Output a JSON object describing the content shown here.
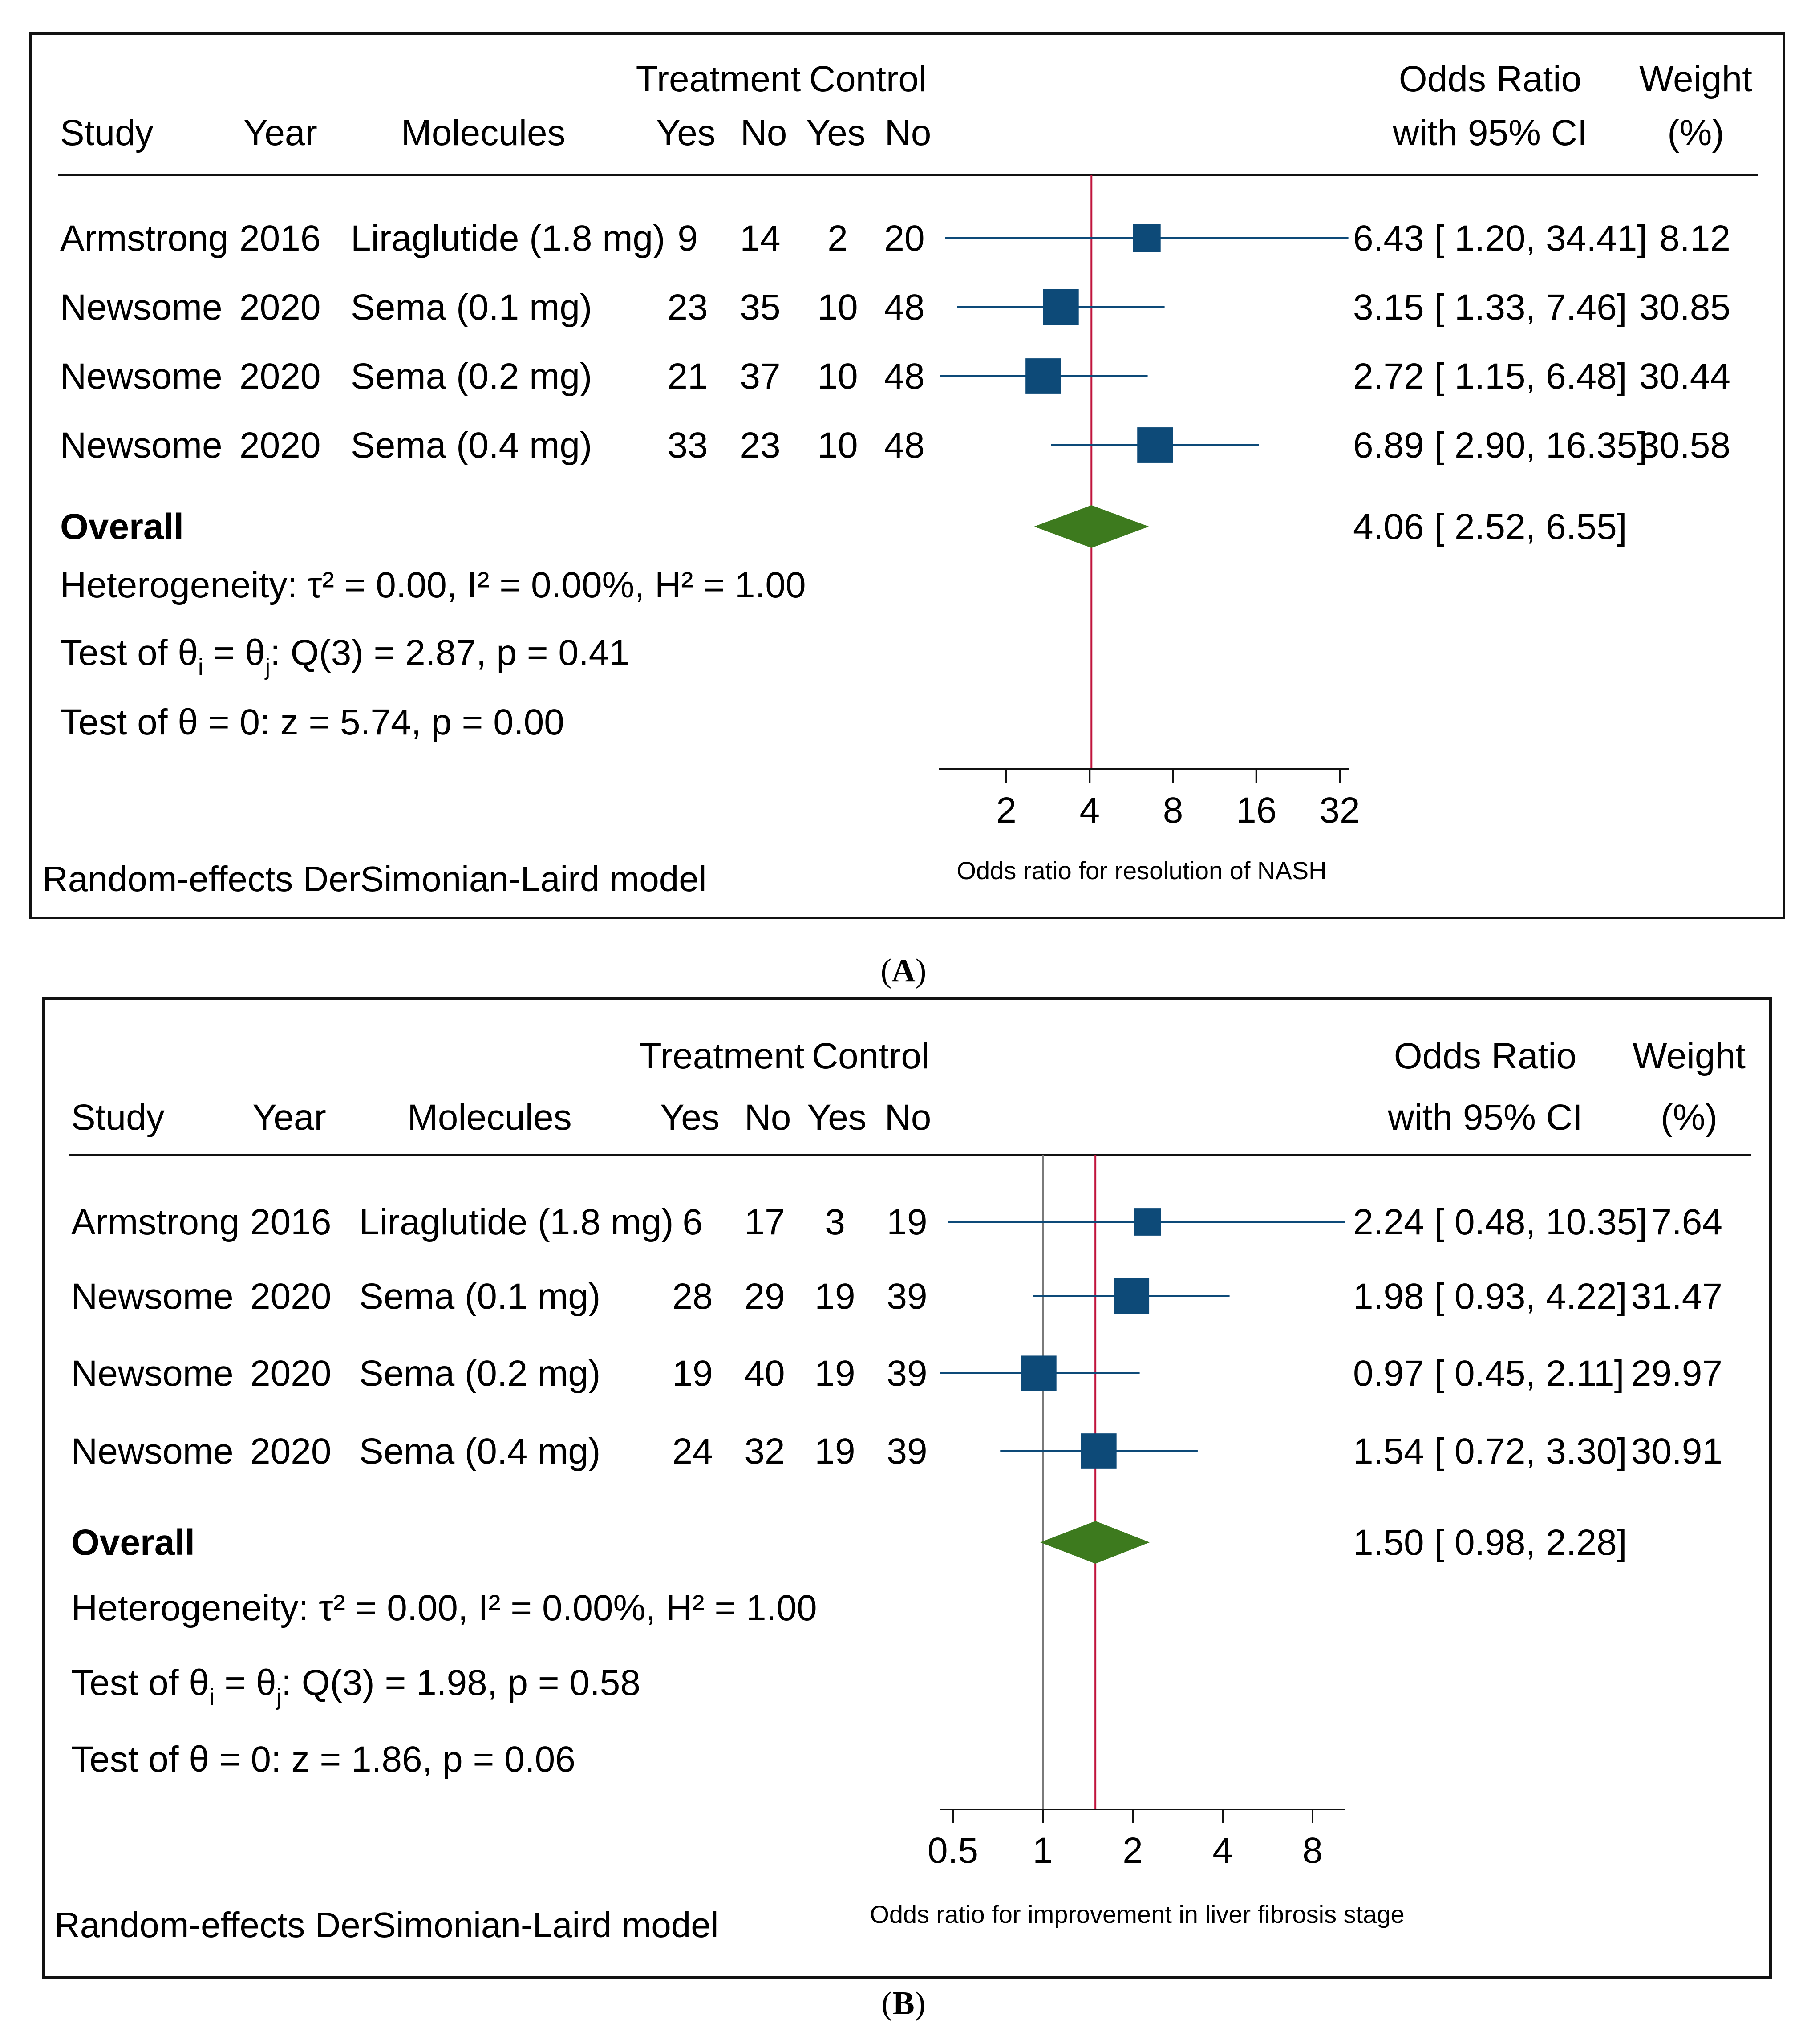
{
  "panels": [
    {
      "panel_label": "(A)",
      "header": {
        "study": "Study",
        "year": "Year",
        "molecules": "Molecules",
        "treatment": "Treatment",
        "control": "Control",
        "t_yes": "Yes",
        "t_no": "No",
        "c_yes": "Yes",
        "c_no": "No",
        "or_line1": "Odds Ratio",
        "or_line2": "with 95% CI",
        "w_line1": "Weight",
        "w_line2": "(%)"
      },
      "rows": [
        {
          "study": "Armstrong",
          "year": "2016",
          "molecule": "Liraglutide (1.8 mg)",
          "t_yes": "9",
          "t_no": "14",
          "c_yes": "2",
          "c_no": "20",
          "or_text": "6.43 [ 1.20,  34.41]",
          "weight": "8.12"
        },
        {
          "study": "Newsome",
          "year": "2020",
          "molecule": "Sema (0.1 mg)",
          "t_yes": "23",
          "t_no": "35",
          "c_yes": "10",
          "c_no": "48",
          "or_text": "3.15 [ 1.33,    7.46]",
          "weight": "30.85"
        },
        {
          "study": "Newsome",
          "year": "2020",
          "molecule": "Sema (0.2 mg)",
          "t_yes": "21",
          "t_no": "37",
          "c_yes": "10",
          "c_no": "48",
          "or_text": "2.72 [ 1.15,    6.48]",
          "weight": "30.44"
        },
        {
          "study": "Newsome",
          "year": "2020",
          "molecule": "Sema (0.4 mg)",
          "t_yes": "33",
          "t_no": "23",
          "c_yes": "10",
          "c_no": "48",
          "or_text": "6.89 [ 2.90,  16.35]",
          "weight": "30.58"
        }
      ],
      "overall": {
        "label": "Overall",
        "or_text": "4.06 [ 2.52,    6.55]"
      },
      "heterogeneity": "Heterogeneity: τ² = 0.00, I² = 0.00%, H² = 1.00",
      "test_q": {
        "prefix": "Test of θ",
        "sub_i": "i",
        "mid": " = θ",
        "sub_j": "j",
        "suffix": ": Q(3) = 2.87, p = 0.41"
      },
      "test_z": "Test of θ = 0: z = 5.74, p = 0.00",
      "model": "Random-effects DerSimonian-Laird model",
      "axis_label": "Odds ratio for resolution of NASH",
      "ticks": [
        "2",
        "4",
        "8",
        "16",
        "32"
      ]
    },
    {
      "panel_label": "(B)",
      "header": {
        "study": "Study",
        "year": "Year",
        "molecules": "Molecules",
        "treatment": "Treatment",
        "control": "Control",
        "t_yes": "Yes",
        "t_no": "No",
        "c_yes": "Yes",
        "c_no": "No",
        "or_line1": "Odds Ratio",
        "or_line2": "with 95% CI",
        "w_line1": "Weight",
        "w_line2": "(%)"
      },
      "rows": [
        {
          "study": "Armstrong",
          "year": "2016",
          "molecule": "Liraglutide (1.8 mg)",
          "t_yes": "6",
          "t_no": "17",
          "c_yes": "3",
          "c_no": "19",
          "or_text": "2.24 [ 0.48,  10.35]",
          "weight": "7.64"
        },
        {
          "study": "Newsome",
          "year": "2020",
          "molecule": "Sema (0.1 mg)",
          "t_yes": "28",
          "t_no": "29",
          "c_yes": "19",
          "c_no": "39",
          "or_text": "1.98 [ 0.93,    4.22]",
          "weight": "31.47"
        },
        {
          "study": "Newsome",
          "year": "2020",
          "molecule": "Sema (0.2 mg)",
          "t_yes": "19",
          "t_no": "40",
          "c_yes": "19",
          "c_no": "39",
          "or_text": "0.97 [ 0.45,    2.11]",
          "weight": "29.97"
        },
        {
          "study": "Newsome",
          "year": "2020",
          "molecule": "Sema (0.4 mg)",
          "t_yes": "24",
          "t_no": "32",
          "c_yes": "19",
          "c_no": "39",
          "or_text": "1.54 [ 0.72,    3.30]",
          "weight": "30.91"
        }
      ],
      "overall": {
        "label": "Overall",
        "or_text": "1.50 [ 0.98,    2.28]"
      },
      "heterogeneity": "Heterogeneity: τ² = 0.00, I² = 0.00%, H² = 1.00",
      "test_q": {
        "prefix": "Test of θ",
        "sub_i": "i",
        "mid": " = θ",
        "sub_j": "j",
        "suffix": ": Q(3) = 1.98, p = 0.58"
      },
      "test_z": "Test of θ = 0: z = 1.86, p = 0.06",
      "model": "Random-effects DerSimonian-Laird model",
      "axis_label": "Odds ratio for improvement in liver fibrosis stage",
      "ticks": [
        "0.5",
        "1",
        "2",
        "4",
        "8"
      ]
    }
  ],
  "colors": {
    "marker": "#0d4a78",
    "ci_line": "#0d4a78",
    "diamond": "#3d7a1e",
    "overall_line": "#c0143c",
    "null_line": "#7a7a7a",
    "frame": "#111111"
  },
  "chart_data": [
    {
      "type": "forest",
      "scale": "log",
      "xlabel": "Odds ratio for resolution of NASH",
      "x_ticks": [
        2,
        4,
        8,
        16,
        32
      ],
      "overall_line": 4.06,
      "series": [
        {
          "label": "Armstrong 2016 Liraglutide (1.8 mg)",
          "or": 6.43,
          "lo": 1.2,
          "hi": 34.41,
          "weight": 8.12
        },
        {
          "label": "Newsome 2020 Sema (0.1 mg)",
          "or": 3.15,
          "lo": 1.33,
          "hi": 7.46,
          "weight": 30.85
        },
        {
          "label": "Newsome 2020 Sema (0.2 mg)",
          "or": 2.72,
          "lo": 1.15,
          "hi": 6.48,
          "weight": 30.44
        },
        {
          "label": "Newsome 2020 Sema (0.4 mg)",
          "or": 6.89,
          "lo": 2.9,
          "hi": 16.35,
          "weight": 30.58
        }
      ],
      "overall": {
        "or": 4.06,
        "lo": 2.52,
        "hi": 6.55
      }
    },
    {
      "type": "forest",
      "scale": "log",
      "xlabel": "Odds ratio for improvement in liver fibrosis stage",
      "x_ticks": [
        0.5,
        1,
        2,
        4,
        8
      ],
      "null_line": 1,
      "overall_line": 1.5,
      "series": [
        {
          "label": "Armstrong 2016 Liraglutide (1.8 mg)",
          "or": 2.24,
          "lo": 0.48,
          "hi": 10.35,
          "weight": 7.64
        },
        {
          "label": "Newsome 2020 Sema (0.1 mg)",
          "or": 1.98,
          "lo": 0.93,
          "hi": 4.22,
          "weight": 31.47
        },
        {
          "label": "Newsome 2020 Sema (0.2 mg)",
          "or": 0.97,
          "lo": 0.45,
          "hi": 2.11,
          "weight": 29.97
        },
        {
          "label": "Newsome 2020 Sema (0.4 mg)",
          "or": 1.54,
          "lo": 0.72,
          "hi": 3.3,
          "weight": 30.91
        }
      ],
      "overall": {
        "or": 1.5,
        "lo": 0.98,
        "hi": 2.28
      }
    }
  ]
}
